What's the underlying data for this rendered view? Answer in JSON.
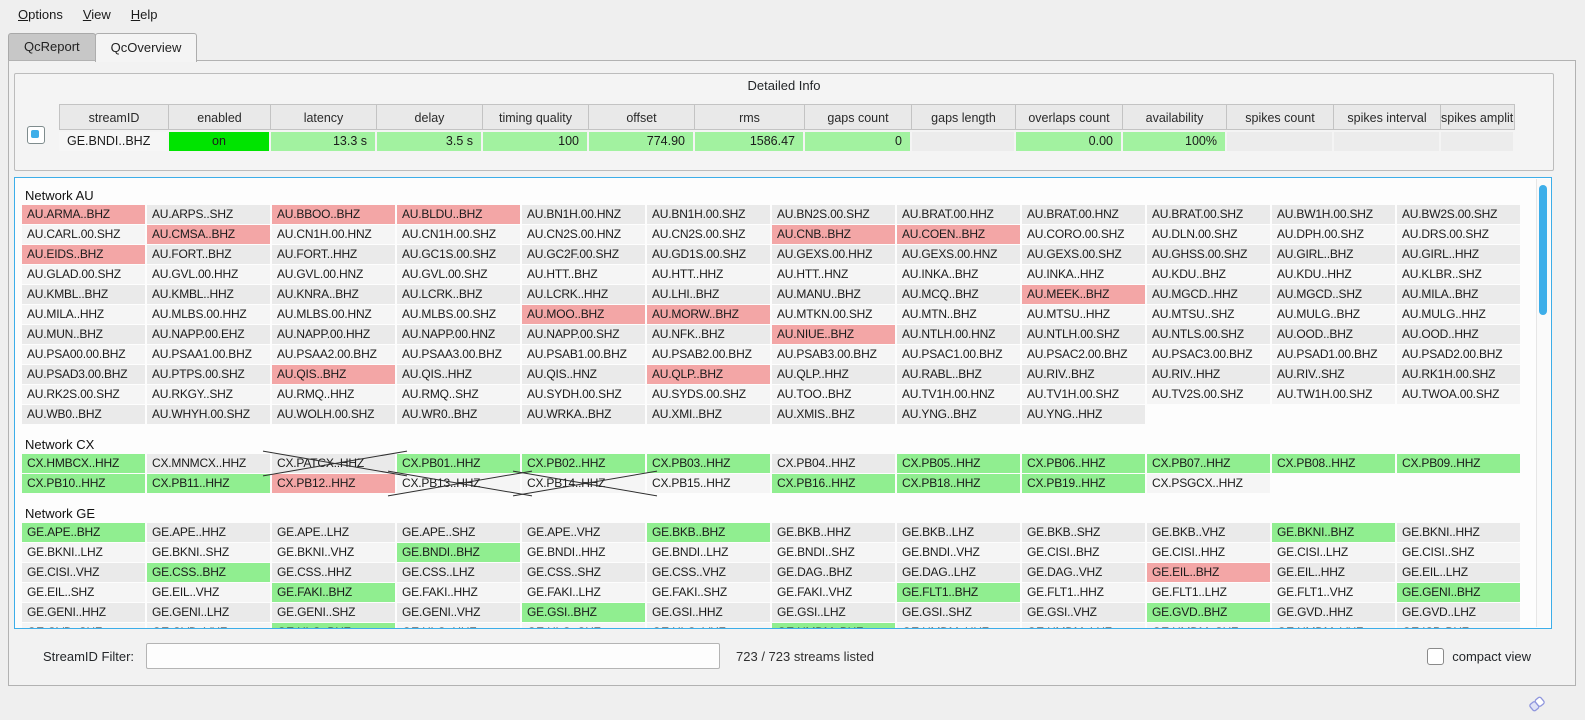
{
  "menu": {
    "items": [
      "Options",
      "View",
      "Help"
    ]
  },
  "tabs": [
    {
      "label": "QcReport",
      "active": false
    },
    {
      "label": "QcOverview",
      "active": true
    }
  ],
  "detailed_info": {
    "title": "Detailed Info",
    "columns": [
      "streamID",
      "enabled",
      "latency",
      "delay",
      "timing quality",
      "offset",
      "rms",
      "gaps count",
      "gaps length",
      "overlaps count",
      "availability",
      "spikes count",
      "spikes interval",
      "spikes amplitu.."
    ],
    "row": {
      "values": [
        "GE.BNDI..BHZ",
        "on",
        "13.3 s",
        "3.5 s",
        "100",
        "774.90",
        "1586.47",
        "0",
        "",
        "0.00",
        "100%",
        "",
        "",
        ""
      ],
      "styles": [
        "plain",
        "on",
        "good",
        "good",
        "good",
        "good",
        "good",
        "good",
        "gray",
        "good",
        "good",
        "gray",
        "gray",
        "gray"
      ]
    }
  },
  "colors": {
    "accent": "#3daee9",
    "grid_ok": "#90ee90",
    "grid_bad": "#f3a6a6",
    "enabled_on": "#00e400",
    "value_good": "#a2f2a0"
  },
  "networks": [
    {
      "name": "Network AU",
      "rows": [
        [
          [
            "AU.ARMA..BHZ",
            "bad"
          ],
          [
            "AU.ARPS..SHZ",
            ""
          ],
          [
            "AU.BBOO..BHZ",
            "bad"
          ],
          [
            "AU.BLDU..BHZ",
            "bad"
          ],
          [
            "AU.BN1H.00.HNZ",
            ""
          ],
          [
            "AU.BN1H.00.SHZ",
            ""
          ],
          [
            "AU.BN2S.00.SHZ",
            ""
          ],
          [
            "AU.BRAT.00.HHZ",
            ""
          ],
          [
            "AU.BRAT.00.HNZ",
            ""
          ],
          [
            "AU.BRAT.00.SHZ",
            ""
          ],
          [
            "AU.BW1H.00.SHZ",
            ""
          ],
          [
            "AU.BW2S.00.SHZ",
            ""
          ]
        ],
        [
          [
            "AU.CARL.00.SHZ",
            ""
          ],
          [
            "AU.CMSA..BHZ",
            "bad"
          ],
          [
            "AU.CN1H.00.HNZ",
            ""
          ],
          [
            "AU.CN1H.00.SHZ",
            ""
          ],
          [
            "AU.CN2S.00.HNZ",
            ""
          ],
          [
            "AU.CN2S.00.SHZ",
            ""
          ],
          [
            "AU.CNB..BHZ",
            "bad"
          ],
          [
            "AU.COEN..BHZ",
            "bad"
          ],
          [
            "AU.CORO.00.SHZ",
            ""
          ],
          [
            "AU.DLN.00.SHZ",
            ""
          ],
          [
            "AU.DPH.00.SHZ",
            ""
          ],
          [
            "AU.DRS.00.SHZ",
            ""
          ]
        ],
        [
          [
            "AU.EIDS..BHZ",
            "bad"
          ],
          [
            "AU.FORT..BHZ",
            ""
          ],
          [
            "AU.FORT..HHZ",
            ""
          ],
          [
            "AU.GC1S.00.SHZ",
            ""
          ],
          [
            "AU.GC2F.00.SHZ",
            ""
          ],
          [
            "AU.GD1S.00.SHZ",
            ""
          ],
          [
            "AU.GEXS.00.HHZ",
            ""
          ],
          [
            "AU.GEXS.00.HNZ",
            ""
          ],
          [
            "AU.GEXS.00.SHZ",
            ""
          ],
          [
            "AU.GHSS.00.SHZ",
            ""
          ],
          [
            "AU.GIRL..BHZ",
            ""
          ],
          [
            "AU.GIRL..HHZ",
            ""
          ]
        ],
        [
          [
            "AU.GLAD.00.SHZ",
            ""
          ],
          [
            "AU.GVL.00.HHZ",
            ""
          ],
          [
            "AU.GVL.00.HNZ",
            ""
          ],
          [
            "AU.GVL.00.SHZ",
            ""
          ],
          [
            "AU.HTT..BHZ",
            ""
          ],
          [
            "AU.HTT..HHZ",
            ""
          ],
          [
            "AU.HTT..HNZ",
            ""
          ],
          [
            "AU.INKA..BHZ",
            ""
          ],
          [
            "AU.INKA..HHZ",
            ""
          ],
          [
            "AU.KDU..BHZ",
            ""
          ],
          [
            "AU.KDU..HHZ",
            ""
          ],
          [
            "AU.KLBR..SHZ",
            ""
          ]
        ],
        [
          [
            "AU.KMBL..BHZ",
            ""
          ],
          [
            "AU.KMBL..HHZ",
            ""
          ],
          [
            "AU.KNRA..BHZ",
            ""
          ],
          [
            "AU.LCRK..BHZ",
            ""
          ],
          [
            "AU.LCRK..HHZ",
            ""
          ],
          [
            "AU.LHI..BHZ",
            ""
          ],
          [
            "AU.MANU..BHZ",
            ""
          ],
          [
            "AU.MCQ..BHZ",
            ""
          ],
          [
            "AU.MEEK..BHZ",
            "bad"
          ],
          [
            "AU.MGCD..HHZ",
            ""
          ],
          [
            "AU.MGCD..SHZ",
            ""
          ],
          [
            "AU.MILA..BHZ",
            ""
          ]
        ],
        [
          [
            "AU.MILA..HHZ",
            ""
          ],
          [
            "AU.MLBS.00.HHZ",
            ""
          ],
          [
            "AU.MLBS.00.HNZ",
            ""
          ],
          [
            "AU.MLBS.00.SHZ",
            ""
          ],
          [
            "AU.MOO..BHZ",
            "bad"
          ],
          [
            "AU.MORW..BHZ",
            "bad"
          ],
          [
            "AU.MTKN.00.SHZ",
            ""
          ],
          [
            "AU.MTN..BHZ",
            ""
          ],
          [
            "AU.MTSU..HHZ",
            ""
          ],
          [
            "AU.MTSU..SHZ",
            ""
          ],
          [
            "AU.MULG..BHZ",
            ""
          ],
          [
            "AU.MULG..HHZ",
            ""
          ]
        ],
        [
          [
            "AU.MUN..BHZ",
            ""
          ],
          [
            "AU.NAPP.00.EHZ",
            ""
          ],
          [
            "AU.NAPP.00.HHZ",
            ""
          ],
          [
            "AU.NAPP.00.HNZ",
            ""
          ],
          [
            "AU.NAPP.00.SHZ",
            ""
          ],
          [
            "AU.NFK..BHZ",
            ""
          ],
          [
            "AU.NIUE..BHZ",
            "bad"
          ],
          [
            "AU.NTLH.00.HNZ",
            ""
          ],
          [
            "AU.NTLH.00.SHZ",
            ""
          ],
          [
            "AU.NTLS.00.SHZ",
            ""
          ],
          [
            "AU.OOD..BHZ",
            ""
          ],
          [
            "AU.OOD..HHZ",
            ""
          ]
        ],
        [
          [
            "AU.PSA00.00.BHZ",
            ""
          ],
          [
            "AU.PSAA1.00.BHZ",
            ""
          ],
          [
            "AU.PSAA2.00.BHZ",
            ""
          ],
          [
            "AU.PSAA3.00.BHZ",
            ""
          ],
          [
            "AU.PSAB1.00.BHZ",
            ""
          ],
          [
            "AU.PSAB2.00.BHZ",
            ""
          ],
          [
            "AU.PSAB3.00.BHZ",
            ""
          ],
          [
            "AU.PSAC1.00.BHZ",
            ""
          ],
          [
            "AU.PSAC2.00.BHZ",
            ""
          ],
          [
            "AU.PSAC3.00.BHZ",
            ""
          ],
          [
            "AU.PSAD1.00.BHZ",
            ""
          ],
          [
            "AU.PSAD2.00.BHZ",
            ""
          ]
        ],
        [
          [
            "AU.PSAD3.00.BHZ",
            ""
          ],
          [
            "AU.PTPS.00.SHZ",
            ""
          ],
          [
            "AU.QIS..BHZ",
            "bad"
          ],
          [
            "AU.QIS..HHZ",
            ""
          ],
          [
            "AU.QIS..HNZ",
            ""
          ],
          [
            "AU.QLP..BHZ",
            "bad"
          ],
          [
            "AU.QLP..HHZ",
            ""
          ],
          [
            "AU.RABL..BHZ",
            ""
          ],
          [
            "AU.RIV..BHZ",
            ""
          ],
          [
            "AU.RIV..HHZ",
            ""
          ],
          [
            "AU.RIV..SHZ",
            ""
          ],
          [
            "AU.RK1H.00.SHZ",
            ""
          ]
        ],
        [
          [
            "AU.RK2S.00.SHZ",
            ""
          ],
          [
            "AU.RKGY..SHZ",
            ""
          ],
          [
            "AU.RMQ..HHZ",
            ""
          ],
          [
            "AU.RMQ..SHZ",
            ""
          ],
          [
            "AU.SYDH.00.SHZ",
            ""
          ],
          [
            "AU.SYDS.00.SHZ",
            ""
          ],
          [
            "AU.TOO..BHZ",
            ""
          ],
          [
            "AU.TV1H.00.HNZ",
            ""
          ],
          [
            "AU.TV1H.00.SHZ",
            ""
          ],
          [
            "AU.TV2S.00.SHZ",
            ""
          ],
          [
            "AU.TW1H.00.SHZ",
            ""
          ],
          [
            "AU.TWOA.00.SHZ",
            ""
          ]
        ],
        [
          [
            "AU.WB0..BHZ",
            ""
          ],
          [
            "AU.WHYH.00.SHZ",
            ""
          ],
          [
            "AU.WOLH.00.SHZ",
            ""
          ],
          [
            "AU.WR0..BHZ",
            ""
          ],
          [
            "AU.WRKA..BHZ",
            ""
          ],
          [
            "AU.XMI..BHZ",
            ""
          ],
          [
            "AU.XMIS..BHZ",
            ""
          ],
          [
            "AU.YNG..BHZ",
            ""
          ],
          [
            "AU.YNG..HHZ",
            ""
          ],
          null,
          null,
          null
        ]
      ]
    },
    {
      "name": "Network CX",
      "rows": [
        [
          [
            "CX.HMBCX..HHZ",
            "ok"
          ],
          [
            "CX.MNMCX..HHZ",
            ""
          ],
          [
            "CX.PATCX..HHZ",
            "x"
          ],
          [
            "CX.PB01..HHZ",
            "ok"
          ],
          [
            "CX.PB02..HHZ",
            "ok"
          ],
          [
            "CX.PB03..HHZ",
            "ok"
          ],
          [
            "CX.PB04..HHZ",
            ""
          ],
          [
            "CX.PB05..HHZ",
            "ok"
          ],
          [
            "CX.PB06..HHZ",
            "ok"
          ],
          [
            "CX.PB07..HHZ",
            "ok"
          ],
          [
            "CX.PB08..HHZ",
            "ok"
          ],
          [
            "CX.PB09..HHZ",
            "ok"
          ]
        ],
        [
          [
            "CX.PB10..HHZ",
            "ok"
          ],
          [
            "CX.PB11..HHZ",
            "ok"
          ],
          [
            "CX.PB12..HHZ",
            "bad"
          ],
          [
            "CX.PB13..HHZ",
            "x"
          ],
          [
            "CX.PB14..HHZ",
            "x"
          ],
          [
            "CX.PB15..HHZ",
            ""
          ],
          [
            "CX.PB16..HHZ",
            "ok"
          ],
          [
            "CX.PB18..HHZ",
            "ok"
          ],
          [
            "CX.PB19..HHZ",
            "ok"
          ],
          [
            "CX.PSGCX..HHZ",
            ""
          ],
          null,
          null
        ]
      ]
    },
    {
      "name": "Network GE",
      "rows": [
        [
          [
            "GE.APE..BHZ",
            "ok"
          ],
          [
            "GE.APE..HHZ",
            ""
          ],
          [
            "GE.APE..LHZ",
            ""
          ],
          [
            "GE.APE..SHZ",
            ""
          ],
          [
            "GE.APE..VHZ",
            ""
          ],
          [
            "GE.BKB..BHZ",
            "ok"
          ],
          [
            "GE.BKB..HHZ",
            ""
          ],
          [
            "GE.BKB..LHZ",
            ""
          ],
          [
            "GE.BKB..SHZ",
            ""
          ],
          [
            "GE.BKB..VHZ",
            ""
          ],
          [
            "GE.BKNI..BHZ",
            "ok"
          ],
          [
            "GE.BKNI..HHZ",
            ""
          ]
        ],
        [
          [
            "GE.BKNI..LHZ",
            ""
          ],
          [
            "GE.BKNI..SHZ",
            ""
          ],
          [
            "GE.BKNI..VHZ",
            ""
          ],
          [
            "GE.BNDI..BHZ",
            "ok"
          ],
          [
            "GE.BNDI..HHZ",
            ""
          ],
          [
            "GE.BNDI..LHZ",
            ""
          ],
          [
            "GE.BNDI..SHZ",
            ""
          ],
          [
            "GE.BNDI..VHZ",
            ""
          ],
          [
            "GE.CISI..BHZ",
            ""
          ],
          [
            "GE.CISI..HHZ",
            ""
          ],
          [
            "GE.CISI..LHZ",
            ""
          ],
          [
            "GE.CISI..SHZ",
            ""
          ]
        ],
        [
          [
            "GE.CISI..VHZ",
            ""
          ],
          [
            "GE.CSS..BHZ",
            "ok"
          ],
          [
            "GE.CSS..HHZ",
            ""
          ],
          [
            "GE.CSS..LHZ",
            ""
          ],
          [
            "GE.CSS..SHZ",
            ""
          ],
          [
            "GE.CSS..VHZ",
            ""
          ],
          [
            "GE.DAG..BHZ",
            ""
          ],
          [
            "GE.DAG..LHZ",
            ""
          ],
          [
            "GE.DAG..VHZ",
            ""
          ],
          [
            "GE.EIL..BHZ",
            "bad"
          ],
          [
            "GE.EIL..HHZ",
            ""
          ],
          [
            "GE.EIL..LHZ",
            ""
          ]
        ],
        [
          [
            "GE.EIL..SHZ",
            ""
          ],
          [
            "GE.EIL..VHZ",
            ""
          ],
          [
            "GE.FAKI..BHZ",
            "ok"
          ],
          [
            "GE.FAKI..HHZ",
            ""
          ],
          [
            "GE.FAKI..LHZ",
            ""
          ],
          [
            "GE.FAKI..SHZ",
            ""
          ],
          [
            "GE.FAKI..VHZ",
            ""
          ],
          [
            "GE.FLT1..BHZ",
            "ok"
          ],
          [
            "GE.FLT1..HHZ",
            ""
          ],
          [
            "GE.FLT1..LHZ",
            ""
          ],
          [
            "GE.FLT1..VHZ",
            ""
          ],
          [
            "GE.GENI..BHZ",
            "ok"
          ]
        ],
        [
          [
            "GE.GENI..HHZ",
            ""
          ],
          [
            "GE.GENI..LHZ",
            ""
          ],
          [
            "GE.GENI..SHZ",
            ""
          ],
          [
            "GE.GENI..VHZ",
            ""
          ],
          [
            "GE.GSI..BHZ",
            "ok"
          ],
          [
            "GE.GSI..HHZ",
            ""
          ],
          [
            "GE.GSI..LHZ",
            ""
          ],
          [
            "GE.GSI..SHZ",
            ""
          ],
          [
            "GE.GSI..VHZ",
            ""
          ],
          [
            "GE.GVD..BHZ",
            "ok"
          ],
          [
            "GE.GVD..HHZ",
            ""
          ],
          [
            "GE.GVD..LHZ",
            ""
          ]
        ],
        [
          [
            "GE.GVD..SHZ",
            ""
          ],
          [
            "GE.GVD..VHZ",
            ""
          ],
          [
            "GE.HLG..BHZ",
            "ok"
          ],
          [
            "GE.HLG..HHZ",
            ""
          ],
          [
            "GE.HLG..SHZ",
            ""
          ],
          [
            "GE.HLG..VHZ",
            ""
          ],
          [
            "GE.HMDM..BHZ",
            "ok"
          ],
          [
            "GE.HMDM..HHZ",
            ""
          ],
          [
            "GE.HMDM..LHZ",
            ""
          ],
          [
            "GE.HMDM..SHZ",
            ""
          ],
          [
            "GE.HMDM..VHZ",
            ""
          ],
          [
            "GE.ISP..BHZ",
            ""
          ]
        ]
      ]
    }
  ],
  "footer": {
    "filter_label": "StreamID Filter:",
    "filter_value": "",
    "status": "723 / 723 streams listed",
    "compact_label": "compact view",
    "compact_checked": false
  }
}
